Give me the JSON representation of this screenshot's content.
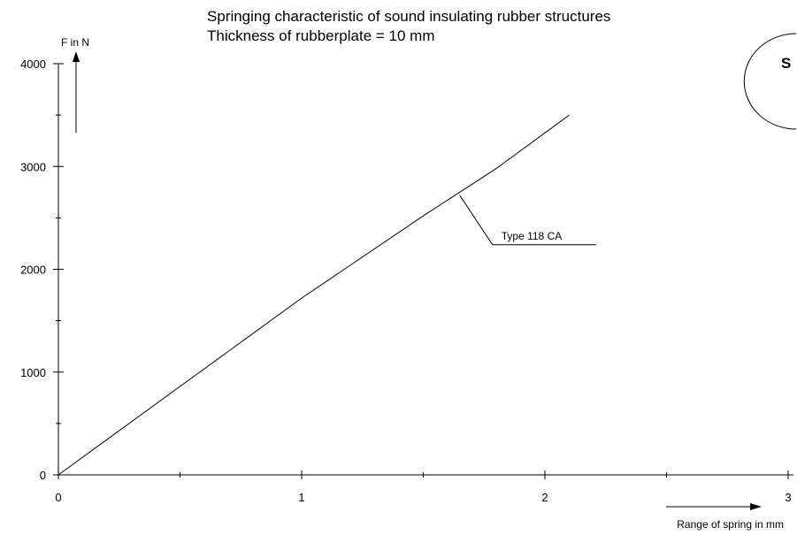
{
  "chart_data": {
    "type": "line",
    "title": "Springing characteristic of sound insulating rubber structures",
    "subtitle": "Thickness of rubberplate = 10 mm",
    "xlabel": "Range of spring in mm",
    "ylabel": "F in N",
    "xlim": [
      0,
      3
    ],
    "ylim": [
      0,
      4000
    ],
    "x_ticks": [
      "0",
      "1",
      "2",
      "3"
    ],
    "y_ticks": [
      "0",
      "1000",
      "2000",
      "3000",
      "4000"
    ],
    "grid": false,
    "series": [
      {
        "name": "Type 118 CA",
        "x": [
          0,
          0.5,
          1.0,
          1.5,
          1.8,
          2.1
        ],
        "y": [
          0,
          860,
          1720,
          2520,
          2980,
          3500
        ]
      }
    ],
    "annotations": [
      {
        "text": "Type 118 CA",
        "x": 1.65,
        "y": 2720
      }
    ],
    "logo": {
      "text": "S",
      "shape": "ellipse"
    }
  }
}
